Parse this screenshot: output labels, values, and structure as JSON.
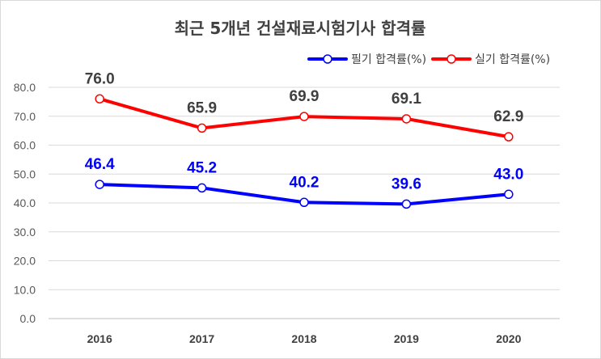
{
  "chart_data": {
    "type": "line",
    "title": "최근 5개년 건설재료시험기사 합격률",
    "categories": [
      "2016",
      "2017",
      "2018",
      "2019",
      "2020"
    ],
    "series": [
      {
        "name": "필기 합격률(%)",
        "color": "#0000ff",
        "values": [
          46.4,
          45.2,
          40.2,
          39.6,
          43.0
        ]
      },
      {
        "name": "실기 합격률(%)",
        "color": "#ff0000",
        "values": [
          76.0,
          65.9,
          69.9,
          69.1,
          62.9
        ]
      }
    ],
    "y_ticks": [
      "0.0",
      "10.0",
      "20.0",
      "30.0",
      "40.0",
      "50.0",
      "60.0",
      "70.0",
      "80.0"
    ],
    "ylim": [
      0,
      80
    ],
    "grid": true,
    "legend_position": "top-right",
    "data_labels": true
  }
}
